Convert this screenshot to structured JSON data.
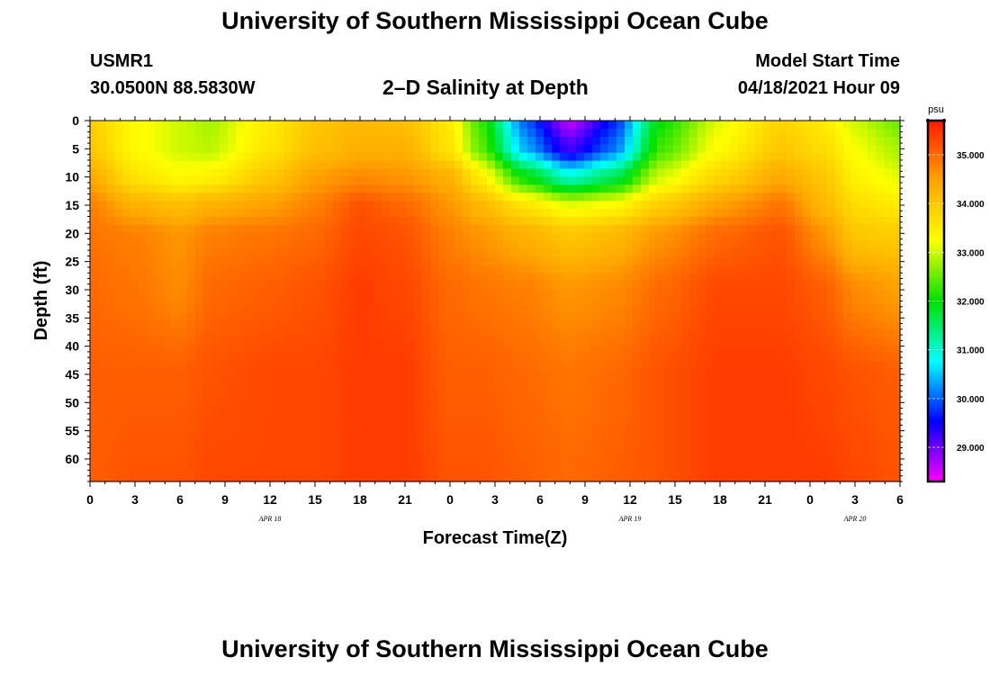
{
  "header": {
    "title": "University of Southern Mississippi Ocean Cube",
    "station": "USMR1",
    "coords": "30.0500N  88.5830W",
    "subtitle": "2-D Salinity at Depth",
    "model_start_label": "Model Start Time",
    "model_start_value": "04/18/2021 Hour 09"
  },
  "footer": {
    "title": "University of Southern Mississippi Ocean Cube"
  },
  "colors": {
    "scale": [
      "#ff00ff",
      "#0000ff",
      "#00ffff",
      "#00e000",
      "#ffff00",
      "#ffa500",
      "#ff1a00"
    ]
  },
  "chart_data": {
    "type": "heatmap",
    "title": "2-D Salinity at Depth",
    "xlabel": "Forecast Time(Z)",
    "ylabel": "Depth (ft)",
    "x_tick_labels": [
      "0",
      "3",
      "6",
      "9",
      "12",
      "15",
      "18",
      "21",
      "0",
      "3",
      "6",
      "9",
      "12",
      "15",
      "18",
      "21",
      "0",
      "3",
      "6"
    ],
    "x_range_hours": [
      0,
      54
    ],
    "date_labels": [
      {
        "text": "APR 18",
        "hour": 12
      },
      {
        "text": "APR 19",
        "hour": 36
      },
      {
        "text": "APR 20",
        "hour": 51
      }
    ],
    "y_tick_labels": [
      "0",
      "5",
      "10",
      "15",
      "20",
      "25",
      "30",
      "35",
      "40",
      "45",
      "50",
      "55",
      "60"
    ],
    "ylim": [
      0,
      64
    ],
    "colorbar": {
      "unit": "psu",
      "range": [
        28.3,
        35.7
      ],
      "ticks": [
        "29.000",
        "30.000",
        "31.000",
        "32.000",
        "33.000",
        "34.000",
        "35.000"
      ],
      "tick_values": [
        29,
        30,
        31,
        32,
        33,
        34,
        35
      ]
    },
    "salinity_profiles": [
      {
        "hour": 0,
        "depths": [
          0,
          5,
          10,
          15,
          20,
          30,
          45,
          64
        ],
        "values": [
          33.9,
          34.0,
          34.4,
          34.8,
          34.9,
          35.0,
          35.1,
          35.1
        ]
      },
      {
        "hour": 3,
        "depths": [
          0,
          5,
          10,
          15,
          20,
          30,
          45,
          64
        ],
        "values": [
          33.3,
          33.3,
          33.6,
          34.3,
          34.8,
          34.9,
          35.1,
          35.2
        ]
      },
      {
        "hour": 6,
        "depths": [
          0,
          5,
          10,
          15,
          20,
          30,
          45,
          64
        ],
        "values": [
          33.0,
          33.0,
          33.3,
          34.1,
          34.6,
          34.7,
          35.1,
          35.2
        ]
      },
      {
        "hour": 8,
        "depths": [
          0,
          5,
          10,
          15,
          20,
          30,
          45,
          64
        ],
        "values": [
          32.8,
          32.9,
          33.4,
          34.3,
          34.8,
          35.0,
          35.2,
          35.3
        ]
      },
      {
        "hour": 12,
        "depths": [
          0,
          5,
          10,
          15,
          20,
          30,
          45,
          64
        ],
        "values": [
          33.5,
          33.6,
          34.0,
          34.5,
          34.9,
          35.1,
          35.3,
          35.3
        ]
      },
      {
        "hour": 15,
        "depths": [
          0,
          5,
          10,
          15,
          20,
          30,
          45,
          64
        ],
        "values": [
          34.0,
          34.1,
          34.5,
          34.8,
          35.0,
          35.2,
          35.3,
          35.3
        ]
      },
      {
        "hour": 18,
        "depths": [
          0,
          5,
          10,
          15,
          20,
          30,
          45,
          64
        ],
        "values": [
          34.2,
          34.3,
          34.7,
          35.2,
          35.3,
          35.4,
          35.4,
          35.4
        ]
      },
      {
        "hour": 21,
        "depths": [
          0,
          5,
          10,
          15,
          20,
          30,
          45,
          64
        ],
        "values": [
          34.1,
          34.3,
          34.6,
          35.0,
          35.2,
          35.3,
          35.4,
          35.4
        ]
      },
      {
        "hour": 24,
        "depths": [
          0,
          5,
          10,
          15,
          20,
          30,
          45,
          64
        ],
        "values": [
          33.5,
          33.6,
          34.3,
          34.6,
          34.8,
          35.0,
          35.1,
          35.2
        ]
      },
      {
        "hour": 26,
        "depths": [
          0,
          5,
          10,
          15,
          20,
          30,
          45,
          64
        ],
        "values": [
          32.3,
          32.5,
          33.5,
          34.2,
          34.6,
          34.9,
          35.1,
          35.2
        ]
      },
      {
        "hour": 29,
        "depths": [
          0,
          5,
          10,
          15,
          20,
          30,
          45,
          64
        ],
        "values": [
          30.0,
          30.4,
          32.0,
          33.6,
          34.3,
          34.8,
          35.0,
          35.1
        ]
      },
      {
        "hour": 32,
        "depths": [
          0,
          5,
          10,
          15,
          20,
          30,
          45,
          64
        ],
        "values": [
          28.6,
          29.2,
          31.0,
          33.1,
          34.0,
          34.6,
          34.9,
          35.0
        ]
      },
      {
        "hour": 35,
        "depths": [
          0,
          5,
          10,
          15,
          20,
          30,
          45,
          64
        ],
        "values": [
          29.7,
          30.1,
          31.6,
          33.3,
          34.2,
          34.7,
          35.0,
          35.1
        ]
      },
      {
        "hour": 38,
        "depths": [
          0,
          5,
          10,
          15,
          20,
          30,
          45,
          64
        ],
        "values": [
          32.0,
          32.3,
          33.0,
          33.9,
          34.6,
          35.0,
          35.2,
          35.2
        ]
      },
      {
        "hour": 42,
        "depths": [
          0,
          5,
          10,
          15,
          20,
          30,
          45,
          64
        ],
        "values": [
          33.1,
          33.3,
          33.8,
          34.5,
          35.0,
          35.3,
          35.4,
          35.4
        ]
      },
      {
        "hour": 46,
        "depths": [
          0,
          5,
          10,
          15,
          20,
          30,
          45,
          64
        ],
        "values": [
          33.8,
          34.0,
          34.4,
          34.9,
          35.2,
          35.3,
          35.4,
          35.4
        ]
      },
      {
        "hour": 49,
        "depths": [
          0,
          5,
          10,
          15,
          20,
          30,
          45,
          64
        ],
        "values": [
          33.5,
          33.7,
          34.0,
          34.2,
          34.6,
          35.1,
          35.3,
          35.4
        ]
      },
      {
        "hour": 51,
        "depths": [
          0,
          5,
          10,
          15,
          20,
          30,
          45,
          64
        ],
        "values": [
          33.0,
          33.2,
          33.4,
          33.7,
          34.0,
          34.7,
          35.2,
          35.3
        ]
      },
      {
        "hour": 54,
        "depths": [
          0,
          5,
          10,
          15,
          20,
          30,
          45,
          64
        ],
        "values": [
          32.5,
          32.8,
          33.1,
          33.5,
          33.9,
          34.5,
          35.1,
          35.2
        ]
      }
    ]
  }
}
